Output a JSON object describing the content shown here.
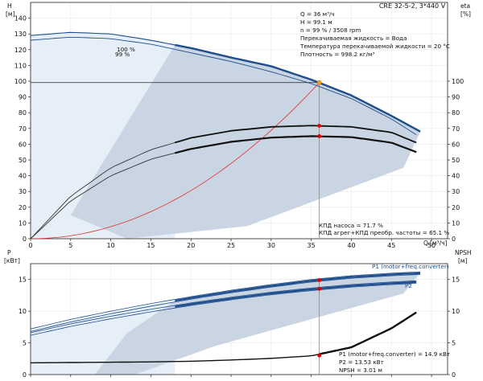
{
  "chart_data": [
    {
      "type": "line",
      "title": "CRE 32-5-2, 3*440 V",
      "x_axis": {
        "label": "Q",
        "unit": "[м³/ч]",
        "range": [
          0,
          52
        ],
        "ticks": [
          0,
          5,
          10,
          15,
          20,
          25,
          30,
          35,
          40,
          45,
          50
        ]
      },
      "y_axis_left": {
        "label": "H",
        "unit": "[м]",
        "range": [
          0,
          150
        ],
        "ticks": [
          0,
          10,
          20,
          30,
          40,
          50,
          60,
          70,
          80,
          90,
          100,
          110,
          120,
          130,
          140
        ]
      },
      "y_axis_right": {
        "label": "eta",
        "unit": "[%]",
        "range": [
          0,
          150
        ],
        "ticks": [
          0,
          10,
          20,
          30,
          40,
          50,
          60,
          70,
          80,
          90,
          100
        ]
      },
      "speed_labels": [
        "100 %",
        "99 %"
      ],
      "info_lines": [
        "Q = 36 м³/ч",
        "H = 99.1 м",
        "n = 99 % / 3508 rpm",
        "Перекачиваемая жидкость = Вода",
        "Температура перекачиваемой жидкости = 20 °C",
        "Плотность = 998.2 кг/м³"
      ],
      "efficiency_lines": [
        "КПД насоса = 71.7 %",
        "КПД агрег+КПД преобр. частоты = 65.1 %"
      ],
      "duty_point": {
        "q": 36,
        "h": 99.1,
        "eta_pump": 71.7,
        "eta_total": 65.1
      },
      "series": [
        {
          "x": [
            0,
            5,
            10,
            15,
            20,
            25,
            30,
            35,
            40,
            45,
            48.6
          ],
          "values": [
            129,
            131,
            130,
            126,
            121,
            115,
            109.5,
            101,
            91,
            78,
            68
          ]
        },
        {
          "x": [
            0,
            5,
            10,
            15,
            20,
            25,
            30,
            35,
            40,
            45,
            48.1
          ],
          "values": [
            126,
            128,
            127,
            123.5,
            118,
            112.5,
            106,
            98.5,
            89,
            76,
            66
          ]
        },
        {
          "x": [
            0,
            5,
            10,
            15,
            20,
            25,
            30,
            35,
            40,
            45,
            48.1
          ],
          "values": [
            0,
            27,
            45,
            56.5,
            64,
            68.5,
            71,
            71.8,
            71,
            67.5,
            61
          ]
        },
        {
          "x": [
            0,
            5,
            10,
            15,
            20,
            25,
            30,
            35,
            40,
            45,
            48.1
          ],
          "values": [
            0,
            24,
            40,
            50.5,
            57,
            61.5,
            64.2,
            65.1,
            64.5,
            61,
            55
          ]
        }
      ]
    },
    {
      "type": "line",
      "x_axis": {
        "range": [
          0,
          52
        ],
        "ticks": [
          0,
          5,
          10,
          15,
          20,
          25,
          30,
          35,
          40,
          45,
          50
        ]
      },
      "y_axis_left": {
        "label": "P",
        "unit": "[кВт]",
        "range": [
          0,
          17.5
        ],
        "ticks": [
          0,
          5,
          10,
          15
        ]
      },
      "y_axis_right": {
        "label": "NPSH",
        "unit": "[м]",
        "range": [
          0,
          17.5
        ],
        "ticks": [
          0,
          5,
          10,
          15
        ]
      },
      "series": [
        {
          "name": "P1 (motor+freq.converter)",
          "x": [
            0,
            5,
            10,
            15,
            20,
            25,
            30,
            35,
            40,
            45,
            48.6
          ],
          "values": [
            7,
            8.5,
            9.8,
            11,
            12.1,
            13.1,
            14,
            14.8,
            15.4,
            15.8,
            16
          ]
        },
        {
          "name": "P2",
          "x": [
            0,
            5,
            10,
            15,
            20,
            25,
            30,
            35,
            40,
            45,
            48.1
          ],
          "values": [
            6.4,
            7.8,
            9,
            10.1,
            11.1,
            12,
            12.8,
            13.45,
            14,
            14.4,
            14.6
          ]
        },
        {
          "x": [
            0,
            5,
            10,
            15,
            20,
            25,
            30,
            35,
            40,
            45,
            48.1
          ],
          "values": [
            1.85,
            1.9,
            1.95,
            2.0,
            2.1,
            2.3,
            2.55,
            2.95,
            4.3,
            7.3,
            9.8
          ]
        }
      ],
      "readout_lines": [
        "P1 (motor+freq.converter) = 14.9 кВт",
        "P2 = 13.53 кВт",
        "NPSH = 3.01 м"
      ],
      "duty_point": {
        "q": 36,
        "p1": 14.9,
        "p2": 13.53,
        "npsh": 3.01
      }
    }
  ],
  "style": {
    "band_fill": "#c9d5e2",
    "band_light": "#e6eff8",
    "curve_blue": "#1f4e8c",
    "curve_black": "#111111",
    "system_curve": "#e03030",
    "duty_marker": "#e00000",
    "duty_marker_head": "#f0a020",
    "grid": "#e8e8e8"
  }
}
